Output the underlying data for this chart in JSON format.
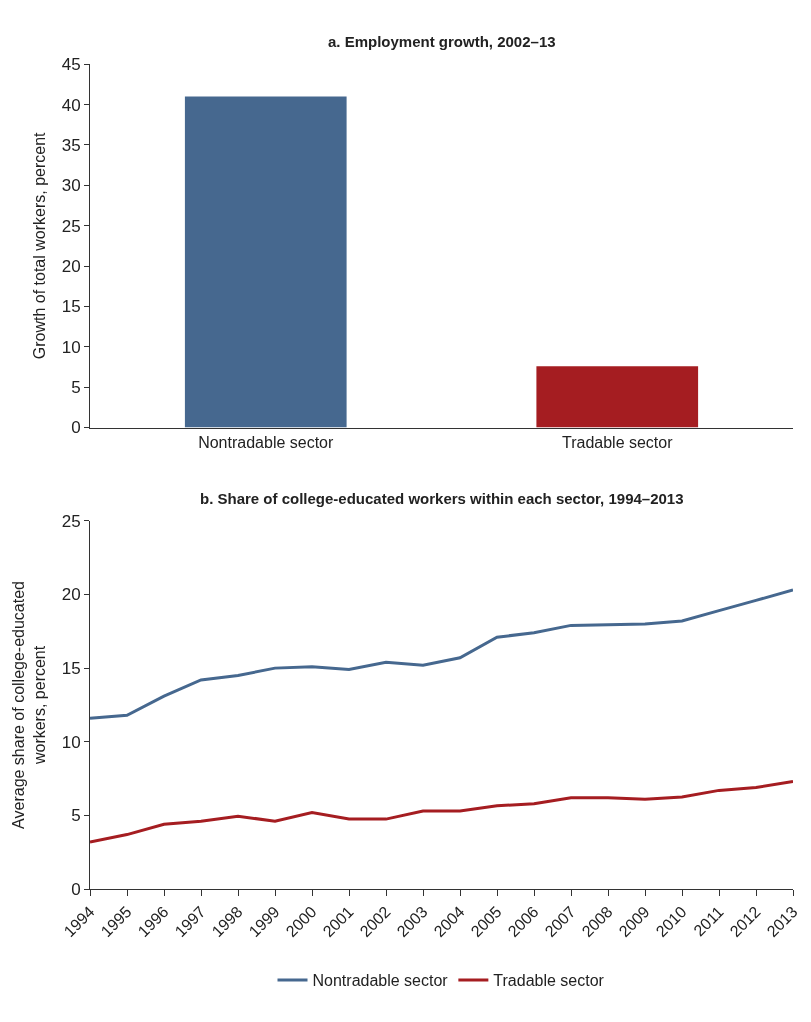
{
  "chart_data": [
    {
      "type": "bar",
      "title": "a. Employment growth, 2002–13",
      "ylabel": "Growth of total workers, percent",
      "categories": [
        "Nontradable sector",
        "Tradable sector"
      ],
      "values": [
        41,
        7.6
      ],
      "colors": [
        "#46688f",
        "#a51d21"
      ],
      "ylim": [
        0,
        45
      ],
      "yticks": [
        0,
        5,
        10,
        15,
        20,
        25,
        30,
        35,
        40,
        45
      ],
      "grid": false,
      "legend": false
    },
    {
      "type": "line",
      "title": "b. Share of college-educated workers within each sector, 1994–2013",
      "ylabel": "Average share of college-educated workers, percent",
      "x": [
        1994,
        1995,
        1996,
        1997,
        1998,
        1999,
        2000,
        2001,
        2002,
        2003,
        2004,
        2005,
        2006,
        2007,
        2008,
        2009,
        2010,
        2011,
        2012,
        2013
      ],
      "series": [
        {
          "name": "Nontradable sector",
          "color": "#46688f",
          "values": [
            11.6,
            11.8,
            13.1,
            14.2,
            14.5,
            15.0,
            15.1,
            14.9,
            15.4,
            15.2,
            15.7,
            17.1,
            17.4,
            17.9,
            17.95,
            18.0,
            18.2,
            18.9,
            19.6,
            20.3
          ]
        },
        {
          "name": "Tradable sector",
          "color": "#a51d21",
          "values": [
            3.2,
            3.7,
            4.4,
            4.6,
            4.95,
            4.6,
            5.2,
            4.75,
            4.75,
            5.3,
            5.3,
            5.65,
            5.8,
            6.2,
            6.2,
            6.1,
            6.25,
            6.7,
            6.9,
            7.3
          ]
        }
      ],
      "xlim": [
        1994,
        2013
      ],
      "xticks": [
        1994,
        1995,
        1996,
        1997,
        1998,
        1999,
        2000,
        2001,
        2002,
        2003,
        2004,
        2005,
        2006,
        2007,
        2008,
        2009,
        2010,
        2011,
        2012,
        2013
      ],
      "ylim": [
        0,
        25
      ],
      "yticks": [
        0,
        5,
        10,
        15,
        20,
        25
      ],
      "grid": false,
      "legend": "bottom",
      "marker": "none",
      "line_style": "solid"
    }
  ]
}
